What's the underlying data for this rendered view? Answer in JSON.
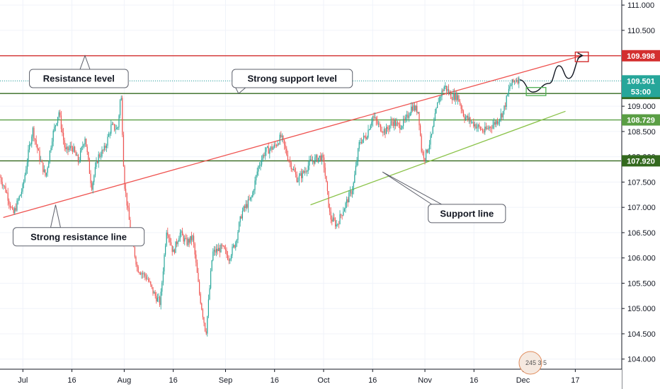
{
  "chart_data": {
    "type": "candlestick",
    "grid": true,
    "price_axis": {
      "side": "right",
      "ylim": [
        103.8,
        111.1
      ],
      "ticks": [
        111.0,
        110.5,
        110.0,
        109.5,
        109.0,
        108.5,
        108.0,
        107.5,
        107.0,
        106.5,
        106.0,
        105.5,
        105.0,
        104.5,
        104.0
      ],
      "tick_labels": [
        "111.000",
        "110.500",
        "110.000",
        "109.500",
        "109.000",
        "108.500",
        "108.000",
        "107.500",
        "107.000",
        "106.500",
        "106.000",
        "105.500",
        "105.000",
        "104.500",
        "104.000"
      ]
    },
    "time_axis": {
      "xlim": [
        "2019-06-24",
        "2019-12-31"
      ],
      "ticks": [
        {
          "date": "2019-07-01",
          "label": "Jul"
        },
        {
          "date": "2019-07-16",
          "label": "16"
        },
        {
          "date": "2019-08-01",
          "label": "Aug"
        },
        {
          "date": "2019-08-16",
          "label": "16"
        },
        {
          "date": "2019-09-01",
          "label": "Sep"
        },
        {
          "date": "2019-09-16",
          "label": "16"
        },
        {
          "date": "2019-10-01",
          "label": "Oct"
        },
        {
          "date": "2019-10-16",
          "label": "16"
        },
        {
          "date": "2019-11-01",
          "label": "Nov"
        },
        {
          "date": "2019-11-16",
          "label": "16"
        },
        {
          "date": "2019-12-01",
          "label": "Dec"
        },
        {
          "date": "2019-12-17",
          "label": "17"
        }
      ]
    },
    "price_path": [
      [
        "2019-06-24",
        107.6
      ],
      [
        "2019-06-26",
        107.3
      ],
      [
        "2019-06-28",
        106.85
      ],
      [
        "2019-07-01",
        107.4
      ],
      [
        "2019-07-03",
        108.2
      ],
      [
        "2019-07-04",
        108.55
      ],
      [
        "2019-07-06",
        108.0
      ],
      [
        "2019-07-08",
        107.6
      ],
      [
        "2019-07-10",
        108.4
      ],
      [
        "2019-07-12",
        108.9
      ],
      [
        "2019-07-14",
        108.1
      ],
      [
        "2019-07-16",
        108.2
      ],
      [
        "2019-07-18",
        107.9
      ],
      [
        "2019-07-20",
        108.4
      ],
      [
        "2019-07-22",
        107.4
      ],
      [
        "2019-07-24",
        108.0
      ],
      [
        "2019-07-26",
        108.15
      ],
      [
        "2019-07-28",
        108.6
      ],
      [
        "2019-07-30",
        108.55
      ],
      [
        "2019-07-31",
        109.3
      ],
      [
        "2019-08-01",
        107.5
      ],
      [
        "2019-08-03",
        106.5
      ],
      [
        "2019-08-05",
        105.8
      ],
      [
        "2019-08-08",
        105.6
      ],
      [
        "2019-08-10",
        105.3
      ],
      [
        "2019-08-12",
        105.1
      ],
      [
        "2019-08-14",
        106.6
      ],
      [
        "2019-08-16",
        106.1
      ],
      [
        "2019-08-18",
        106.5
      ],
      [
        "2019-08-20",
        106.3
      ],
      [
        "2019-08-22",
        106.4
      ],
      [
        "2019-08-24",
        105.3
      ],
      [
        "2019-08-26",
        104.5
      ],
      [
        "2019-08-28",
        106.1
      ],
      [
        "2019-08-31",
        106.2
      ],
      [
        "2019-09-02",
        106.0
      ],
      [
        "2019-09-04",
        106.3
      ],
      [
        "2019-09-06",
        106.9
      ],
      [
        "2019-09-09",
        107.2
      ],
      [
        "2019-09-11",
        107.8
      ],
      [
        "2019-09-13",
        108.1
      ],
      [
        "2019-09-16",
        108.2
      ],
      [
        "2019-09-18",
        108.4
      ],
      [
        "2019-09-20",
        108.0
      ],
      [
        "2019-09-23",
        107.55
      ],
      [
        "2019-09-25",
        107.7
      ],
      [
        "2019-09-27",
        107.9
      ],
      [
        "2019-09-30",
        108.0
      ],
      [
        "2019-10-01",
        107.9
      ],
      [
        "2019-10-03",
        106.8
      ],
      [
        "2019-10-05",
        106.65
      ],
      [
        "2019-10-08",
        107.1
      ],
      [
        "2019-10-10",
        107.4
      ],
      [
        "2019-10-12",
        108.3
      ],
      [
        "2019-10-14",
        108.4
      ],
      [
        "2019-10-16",
        108.8
      ],
      [
        "2019-10-18",
        108.6
      ],
      [
        "2019-10-20",
        108.5
      ],
      [
        "2019-10-22",
        108.7
      ],
      [
        "2019-10-24",
        108.6
      ],
      [
        "2019-10-26",
        108.7
      ],
      [
        "2019-10-28",
        109.0
      ],
      [
        "2019-10-30",
        108.9
      ],
      [
        "2019-10-31",
        108.1
      ],
      [
        "2019-11-01",
        108.0
      ],
      [
        "2019-11-03",
        108.4
      ],
      [
        "2019-11-05",
        109.1
      ],
      [
        "2019-11-07",
        109.4
      ],
      [
        "2019-11-09",
        109.2
      ],
      [
        "2019-11-11",
        109.2
      ],
      [
        "2019-11-13",
        108.8
      ],
      [
        "2019-11-15",
        108.7
      ],
      [
        "2019-11-17",
        108.6
      ],
      [
        "2019-11-19",
        108.5
      ],
      [
        "2019-11-21",
        108.6
      ],
      [
        "2019-11-23",
        108.7
      ],
      [
        "2019-11-25",
        108.9
      ],
      [
        "2019-11-27",
        109.4
      ],
      [
        "2019-11-29",
        109.55
      ],
      [
        "2019-11-30",
        109.501
      ]
    ],
    "levels": [
      {
        "name": "Resistance level",
        "price": 109.998,
        "color": "#d32f2f",
        "tag": "109.998"
      },
      {
        "name": "Strong support level",
        "price": 109.252,
        "color": "#33691e",
        "tag": "109.252"
      },
      {
        "name": "",
        "price": 108.729,
        "color": "#5a9e44",
        "tag": "108.729"
      },
      {
        "name": "",
        "price": 107.92,
        "color": "#33691e",
        "tag": "107.920"
      }
    ],
    "current_price": {
      "price": 109.501,
      "tag": "109.501",
      "countdown": "53:00",
      "color": "#26a69a"
    },
    "trendlines": [
      {
        "name": "Strong resistance line",
        "color": "#ef5350",
        "from": [
          "2019-06-25",
          106.8
        ],
        "to": [
          "2019-12-19",
          110.0
        ]
      },
      {
        "name": "Support line",
        "color": "#8bc34a",
        "from": [
          "2019-09-27",
          107.05
        ],
        "to": [
          "2019-12-14",
          108.9
        ]
      }
    ],
    "callouts": [
      {
        "text": "Resistance level",
        "box": [
          "2019-07-03",
          109.73
        ],
        "anchor": [
          "2019-07-20",
          110.0
        ]
      },
      {
        "text": "Strong support level",
        "box": [
          "2019-09-03",
          109.73
        ],
        "anchor": [
          "2019-09-05",
          109.25
        ]
      },
      {
        "text": "Support line",
        "box": [
          "2019-11-02",
          107.06
        ],
        "anchor": [
          "2019-10-19",
          107.7
        ]
      },
      {
        "text": "Strong resistance line",
        "box": [
          "2019-06-28",
          106.6
        ],
        "anchor": [
          "2019-07-11",
          107.05
        ]
      }
    ],
    "projection": {
      "path": [
        [
          "2019-11-30",
          109.52
        ],
        [
          "2019-12-04",
          109.28
        ],
        [
          "2019-12-09",
          109.45
        ],
        [
          "2019-12-12",
          109.8
        ],
        [
          "2019-12-15",
          109.55
        ],
        [
          "2019-12-19",
          110.0
        ]
      ],
      "entry_box": {
        "from": [
          "2019-12-02",
          109.37
        ],
        "to": [
          "2019-12-08",
          109.21
        ]
      },
      "target_box": {
        "from": [
          "2019-12-17",
          110.07
        ],
        "to": [
          "2019-12-21",
          109.88
        ]
      }
    },
    "logo_text": "245 3 5"
  }
}
